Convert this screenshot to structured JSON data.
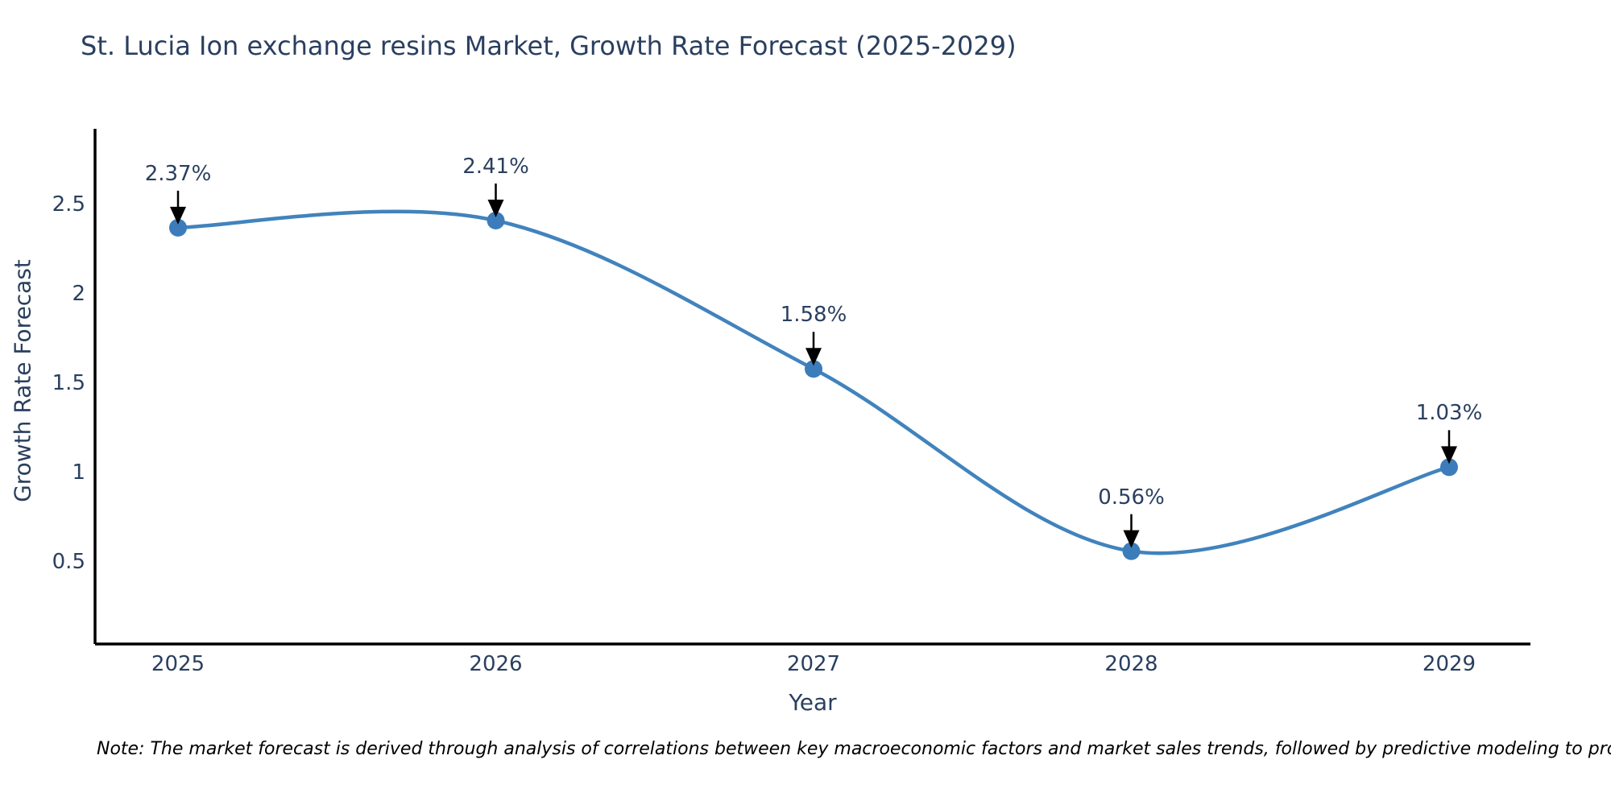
{
  "title": "St. Lucia Ion exchange resins Market, Growth Rate Forecast (2025-2029)",
  "note": "Note: The market forecast is derived through analysis of correlations between key macroeconomic factors and market sales trends, followed by predictive modeling to project future sales",
  "chart_data": {
    "type": "line",
    "title": "St. Lucia Ion exchange resins Market, Growth Rate Forecast (2025-2029)",
    "xlabel": "Year",
    "ylabel": "Growth Rate Forecast",
    "x": [
      2025,
      2026,
      2027,
      2028,
      2029
    ],
    "categories": [
      "2025",
      "2026",
      "2027",
      "2028",
      "2029"
    ],
    "series": [
      {
        "name": "Growth Rate Forecast",
        "values": [
          2.37,
          2.41,
          1.58,
          0.56,
          1.03
        ],
        "point_labels": [
          "2.37%",
          "2.41%",
          "1.58%",
          "0.56%",
          "1.03%"
        ]
      }
    ],
    "y_ticks": [
      2.5,
      2,
      1.5,
      1,
      0.5
    ],
    "y_tick_labels": [
      "2.5",
      "2",
      "1.5",
      "1",
      "0.5"
    ],
    "ylim": [
      0.04,
      2.92
    ],
    "xlim": [
      2024.74,
      2029.27
    ],
    "grid": false,
    "line_shape": "spline",
    "legend": "none",
    "annotations_have_arrows": true,
    "colors": {
      "line": "#4183bd",
      "marker": "#3d7cba",
      "axis": "#000000",
      "text": "#2a3f5f",
      "arrow": "#000000",
      "note_text": "#000000",
      "background": "#ffffff"
    }
  }
}
